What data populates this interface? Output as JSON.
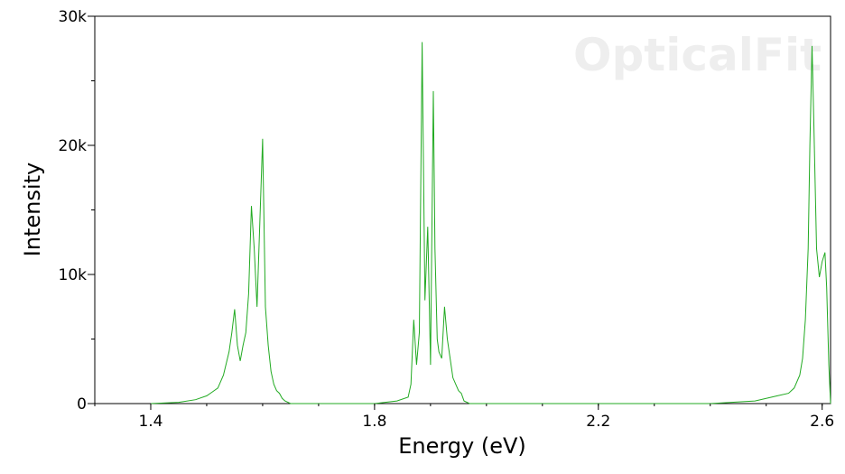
{
  "watermark": "OpticalFit",
  "chart_data": {
    "type": "line",
    "xlabel": "Energy (eV)",
    "ylabel": "Intensity",
    "xlim": [
      1.3,
      2.615
    ],
    "ylim": [
      0,
      30000
    ],
    "x_ticks": [
      {
        "value": 1.4,
        "label": "1.4"
      },
      {
        "value": 1.8,
        "label": "1.8"
      },
      {
        "value": 2.2,
        "label": "2.2"
      },
      {
        "value": 2.6,
        "label": "2.6"
      }
    ],
    "y_ticks": [
      {
        "value": 0,
        "label": "0"
      },
      {
        "value": 10000,
        "label": "10k"
      },
      {
        "value": 20000,
        "label": "20k"
      },
      {
        "value": 30000,
        "label": "30k"
      }
    ],
    "grid": false,
    "line_color": "#22aa22",
    "series": [
      {
        "x": [
          1.4,
          1.45,
          1.48,
          1.5,
          1.51,
          1.52,
          1.53,
          1.54,
          1.545,
          1.55,
          1.555,
          1.56,
          1.565,
          1.57,
          1.575,
          1.58,
          1.585,
          1.59,
          1.595,
          1.6,
          1.605,
          1.61,
          1.615,
          1.62,
          1.625,
          1.63,
          1.635,
          1.64,
          1.65,
          1.7,
          1.8,
          1.84,
          1.86,
          1.865,
          1.87,
          1.875,
          1.88,
          1.885,
          1.89,
          1.895,
          1.9,
          1.905,
          1.908,
          1.912,
          1.915,
          1.92,
          1.925,
          1.93,
          1.935,
          1.94,
          1.945,
          1.95,
          1.955,
          1.96,
          1.97,
          2.0,
          2.2,
          2.4,
          2.48,
          2.5,
          2.52,
          2.54,
          2.55,
          2.56,
          2.565,
          2.57,
          2.575,
          2.578,
          2.582,
          2.585,
          2.59,
          2.595,
          2.6,
          2.605,
          2.608,
          2.612,
          2.615
        ],
        "y": [
          0,
          100,
          300,
          600,
          900,
          1200,
          2200,
          4000,
          5500,
          7300,
          4500,
          3300,
          4500,
          5500,
          8500,
          15300,
          12000,
          7500,
          14000,
          20500,
          7500,
          4500,
          2500,
          1500,
          1000,
          800,
          400,
          200,
          0,
          0,
          0,
          200,
          500,
          1500,
          6500,
          3000,
          5500,
          28000,
          8000,
          13700,
          3000,
          24200,
          12000,
          5000,
          4000,
          3500,
          7500,
          5000,
          3500,
          2000,
          1500,
          1000,
          800,
          200,
          0,
          0,
          0,
          0,
          200,
          400,
          600,
          800,
          1200,
          2200,
          3500,
          6500,
          12000,
          20000,
          27700,
          22000,
          12000,
          9800,
          11000,
          11700,
          9000,
          3000,
          0
        ]
      }
    ]
  }
}
